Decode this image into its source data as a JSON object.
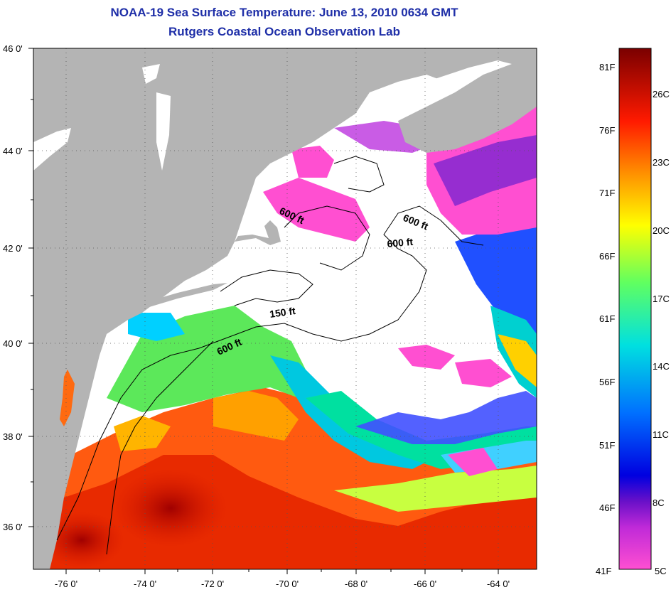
{
  "title": {
    "line1": "NOAA-19 Sea Surface Temperature:  June 13, 2010 0634 GMT",
    "line2": "Rutgers Coastal Ocean Observation Lab"
  },
  "map": {
    "lat_labels": [
      "46 0'",
      "44 0'",
      "42 0'",
      "40 0'",
      "38 0'",
      "36 0'"
    ],
    "lon_labels": [
      "-76 0'",
      "-74 0'",
      "-72 0'",
      "-70 0'",
      "-68 0'",
      "-66 0'",
      "-64 0'"
    ],
    "lat_range": [
      35,
      46
    ],
    "lon_range": [
      -77,
      -62.5
    ],
    "contour_labels": [
      "600 ft",
      "600 ft",
      "600 ft",
      "150 ft",
      "600 ft"
    ],
    "colors": {
      "land": "#b4b4b4",
      "cloud": "#ffffff",
      "border": "#000000"
    }
  },
  "colorbar": {
    "fahrenheit_labels": [
      "81F",
      "76F",
      "71F",
      "66F",
      "61F",
      "56F",
      "51F",
      "46F",
      "41F"
    ],
    "celsius_labels": [
      "26C",
      "23C",
      "20C",
      "17C",
      "14C",
      "11C",
      "8C",
      "5C"
    ],
    "temp_range_f": [
      41,
      82
    ],
    "stops": [
      "#ff4fd1",
      "#a020f0",
      "#0000e0",
      "#0080ff",
      "#00e0e0",
      "#60ff60",
      "#ffff00",
      "#ff8000",
      "#ff1000",
      "#7a0000"
    ]
  }
}
